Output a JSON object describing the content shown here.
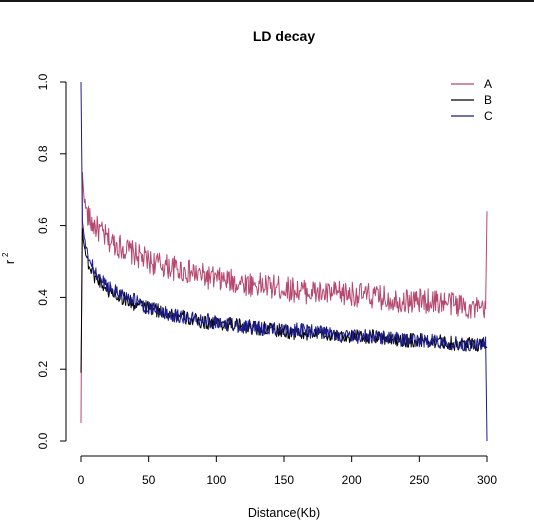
{
  "chart_data": {
    "type": "line",
    "title": "LD decay",
    "xlabel": "Distance(Kb)",
    "ylabel": "r",
    "ylabel_superscript": "2",
    "xlim": [
      0,
      300
    ],
    "ylim": [
      0,
      1
    ],
    "xticks": [
      "0",
      "50",
      "100",
      "150",
      "200",
      "250",
      "300"
    ],
    "yticks": [
      "0.0",
      "0.2",
      "0.4",
      "0.6",
      "0.8",
      "1.0"
    ],
    "grid": false,
    "legend_position": "top-right",
    "x": [
      0,
      1,
      2,
      3,
      5,
      7,
      10,
      15,
      20,
      30,
      40,
      50,
      60,
      70,
      80,
      90,
      100,
      120,
      140,
      160,
      180,
      200,
      220,
      240,
      260,
      280,
      299,
      300
    ],
    "series": [
      {
        "name": "A",
        "color": "#b5486e",
        "values": [
          0.05,
          0.74,
          0.7,
          0.66,
          0.63,
          0.61,
          0.6,
          0.58,
          0.56,
          0.54,
          0.52,
          0.5,
          0.49,
          0.48,
          0.47,
          0.46,
          0.45,
          0.44,
          0.43,
          0.42,
          0.41,
          0.41,
          0.4,
          0.39,
          0.39,
          0.38,
          0.36,
          0.64
        ]
      },
      {
        "name": "B",
        "color": "#000000",
        "values": [
          0.19,
          0.59,
          0.56,
          0.53,
          0.5,
          0.48,
          0.46,
          0.44,
          0.42,
          0.4,
          0.38,
          0.37,
          0.36,
          0.35,
          0.34,
          0.33,
          0.33,
          0.32,
          0.31,
          0.3,
          0.3,
          0.29,
          0.29,
          0.28,
          0.28,
          0.27,
          0.27,
          0.26
        ]
      },
      {
        "name": "C",
        "color": "#1c1c8c",
        "values": [
          1.0,
          0.61,
          0.58,
          0.55,
          0.52,
          0.5,
          0.47,
          0.45,
          0.43,
          0.41,
          0.39,
          0.37,
          0.36,
          0.35,
          0.34,
          0.34,
          0.33,
          0.32,
          0.31,
          0.31,
          0.3,
          0.29,
          0.29,
          0.28,
          0.28,
          0.27,
          0.27,
          0.0
        ]
      }
    ]
  }
}
